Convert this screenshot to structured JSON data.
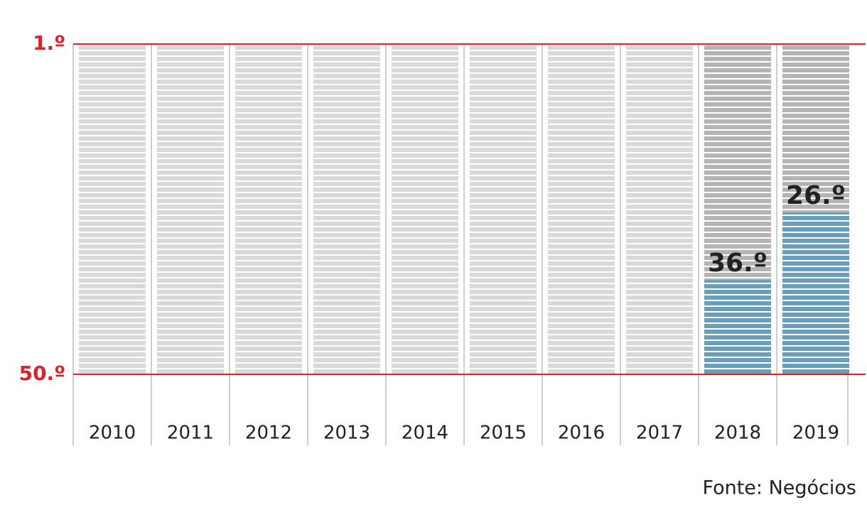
{
  "chart_data": {
    "type": "bar",
    "categories": [
      "2010",
      "2011",
      "2012",
      "2013",
      "2014",
      "2015",
      "2016",
      "2017",
      "2018",
      "2019"
    ],
    "values": [
      null,
      null,
      null,
      null,
      null,
      null,
      null,
      null,
      36,
      26
    ],
    "value_labels": [
      null,
      null,
      null,
      null,
      null,
      null,
      null,
      null,
      "36.º",
      "26.º"
    ],
    "color": "#6a9fb9",
    "ylim": [
      50,
      1
    ],
    "yticks": [
      {
        "value": 1,
        "label": "1.º"
      },
      {
        "value": 50,
        "label": "50.º"
      }
    ],
    "source": "Fonte: Negócios"
  }
}
